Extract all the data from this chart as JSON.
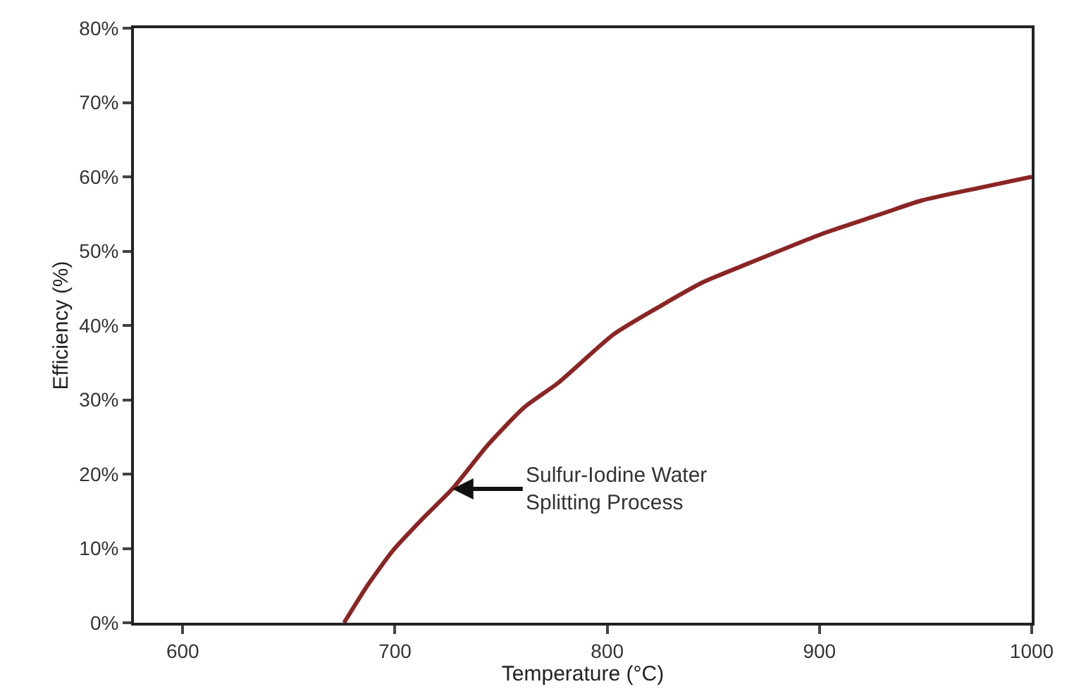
{
  "chart_data": {
    "type": "line",
    "xlabel": "Temperature (°C)",
    "ylabel": "Efficiency (%)",
    "x": [
      676,
      687,
      699,
      713,
      727,
      744,
      761,
      777,
      803,
      825,
      845,
      867,
      901,
      925,
      948,
      975,
      1000
    ],
    "series": [
      {
        "color": "#8b2525",
        "values": [
          0,
          5,
          9.7,
          14,
          18,
          24,
          29,
          32.3,
          38.8,
          42.6,
          45.8,
          48.4,
          52.3,
          54.6,
          56.8,
          58.5,
          60
        ]
      }
    ],
    "xlim": [
      577,
      1000
    ],
    "xticks": [
      600,
      700,
      800,
      900,
      1000
    ],
    "ylim": [
      0,
      80
    ],
    "yticks": [
      {
        "value": 0,
        "label": "0%"
      },
      {
        "value": 10,
        "label": "10%"
      },
      {
        "value": 20,
        "label": "20%"
      },
      {
        "value": 30,
        "label": "30%"
      },
      {
        "value": 40,
        "label": "40%"
      },
      {
        "value": 50,
        "label": "50%"
      },
      {
        "value": 60,
        "label": "60%"
      },
      {
        "value": 70,
        "label": "70%"
      },
      {
        "value": 80,
        "label": "80%"
      }
    ],
    "annotations": [
      {
        "text": "Sulfur-Iodine Water\nSplitting Process",
        "x": 727,
        "y": 18
      }
    ],
    "marker": "none",
    "line_style": "solid"
  }
}
